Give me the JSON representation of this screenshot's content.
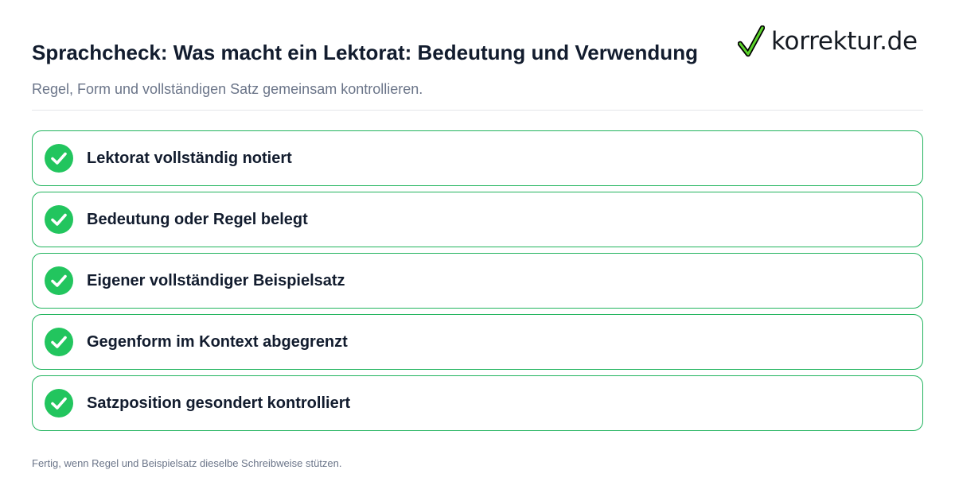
{
  "header": {
    "title": "Sprachcheck: Was macht ein Lektorat: Bedeutung und Verwendung",
    "subtitle": "Regel, Form und vollständigen Satz gemeinsam kontrollieren."
  },
  "logo": {
    "text": "korrektur.de",
    "icon": "checkmark-icon",
    "check_color": "#22b45e"
  },
  "checklist": {
    "items": [
      {
        "label": "Lektorat vollständig notiert",
        "checked": true,
        "icon": "check-circle-icon"
      },
      {
        "label": "Bedeutung oder Regel belegt",
        "checked": true,
        "icon": "check-circle-icon"
      },
      {
        "label": "Eigener vollständiger Beispielsatz",
        "checked": true,
        "icon": "check-circle-icon"
      },
      {
        "label": "Gegenform im Kontext abgegrenzt",
        "checked": true,
        "icon": "check-circle-icon"
      },
      {
        "label": "Satzposition gesondert kontrolliert",
        "checked": true,
        "icon": "check-circle-icon"
      }
    ]
  },
  "footer": {
    "note": "Fertig, wenn Regel und Beispielsatz dieselbe Schreibweise stützen."
  },
  "colors": {
    "accent_green": "#22b45e",
    "text_dark": "#121c2e",
    "text_muted": "#6b7589",
    "divider": "#e3e6ea"
  }
}
